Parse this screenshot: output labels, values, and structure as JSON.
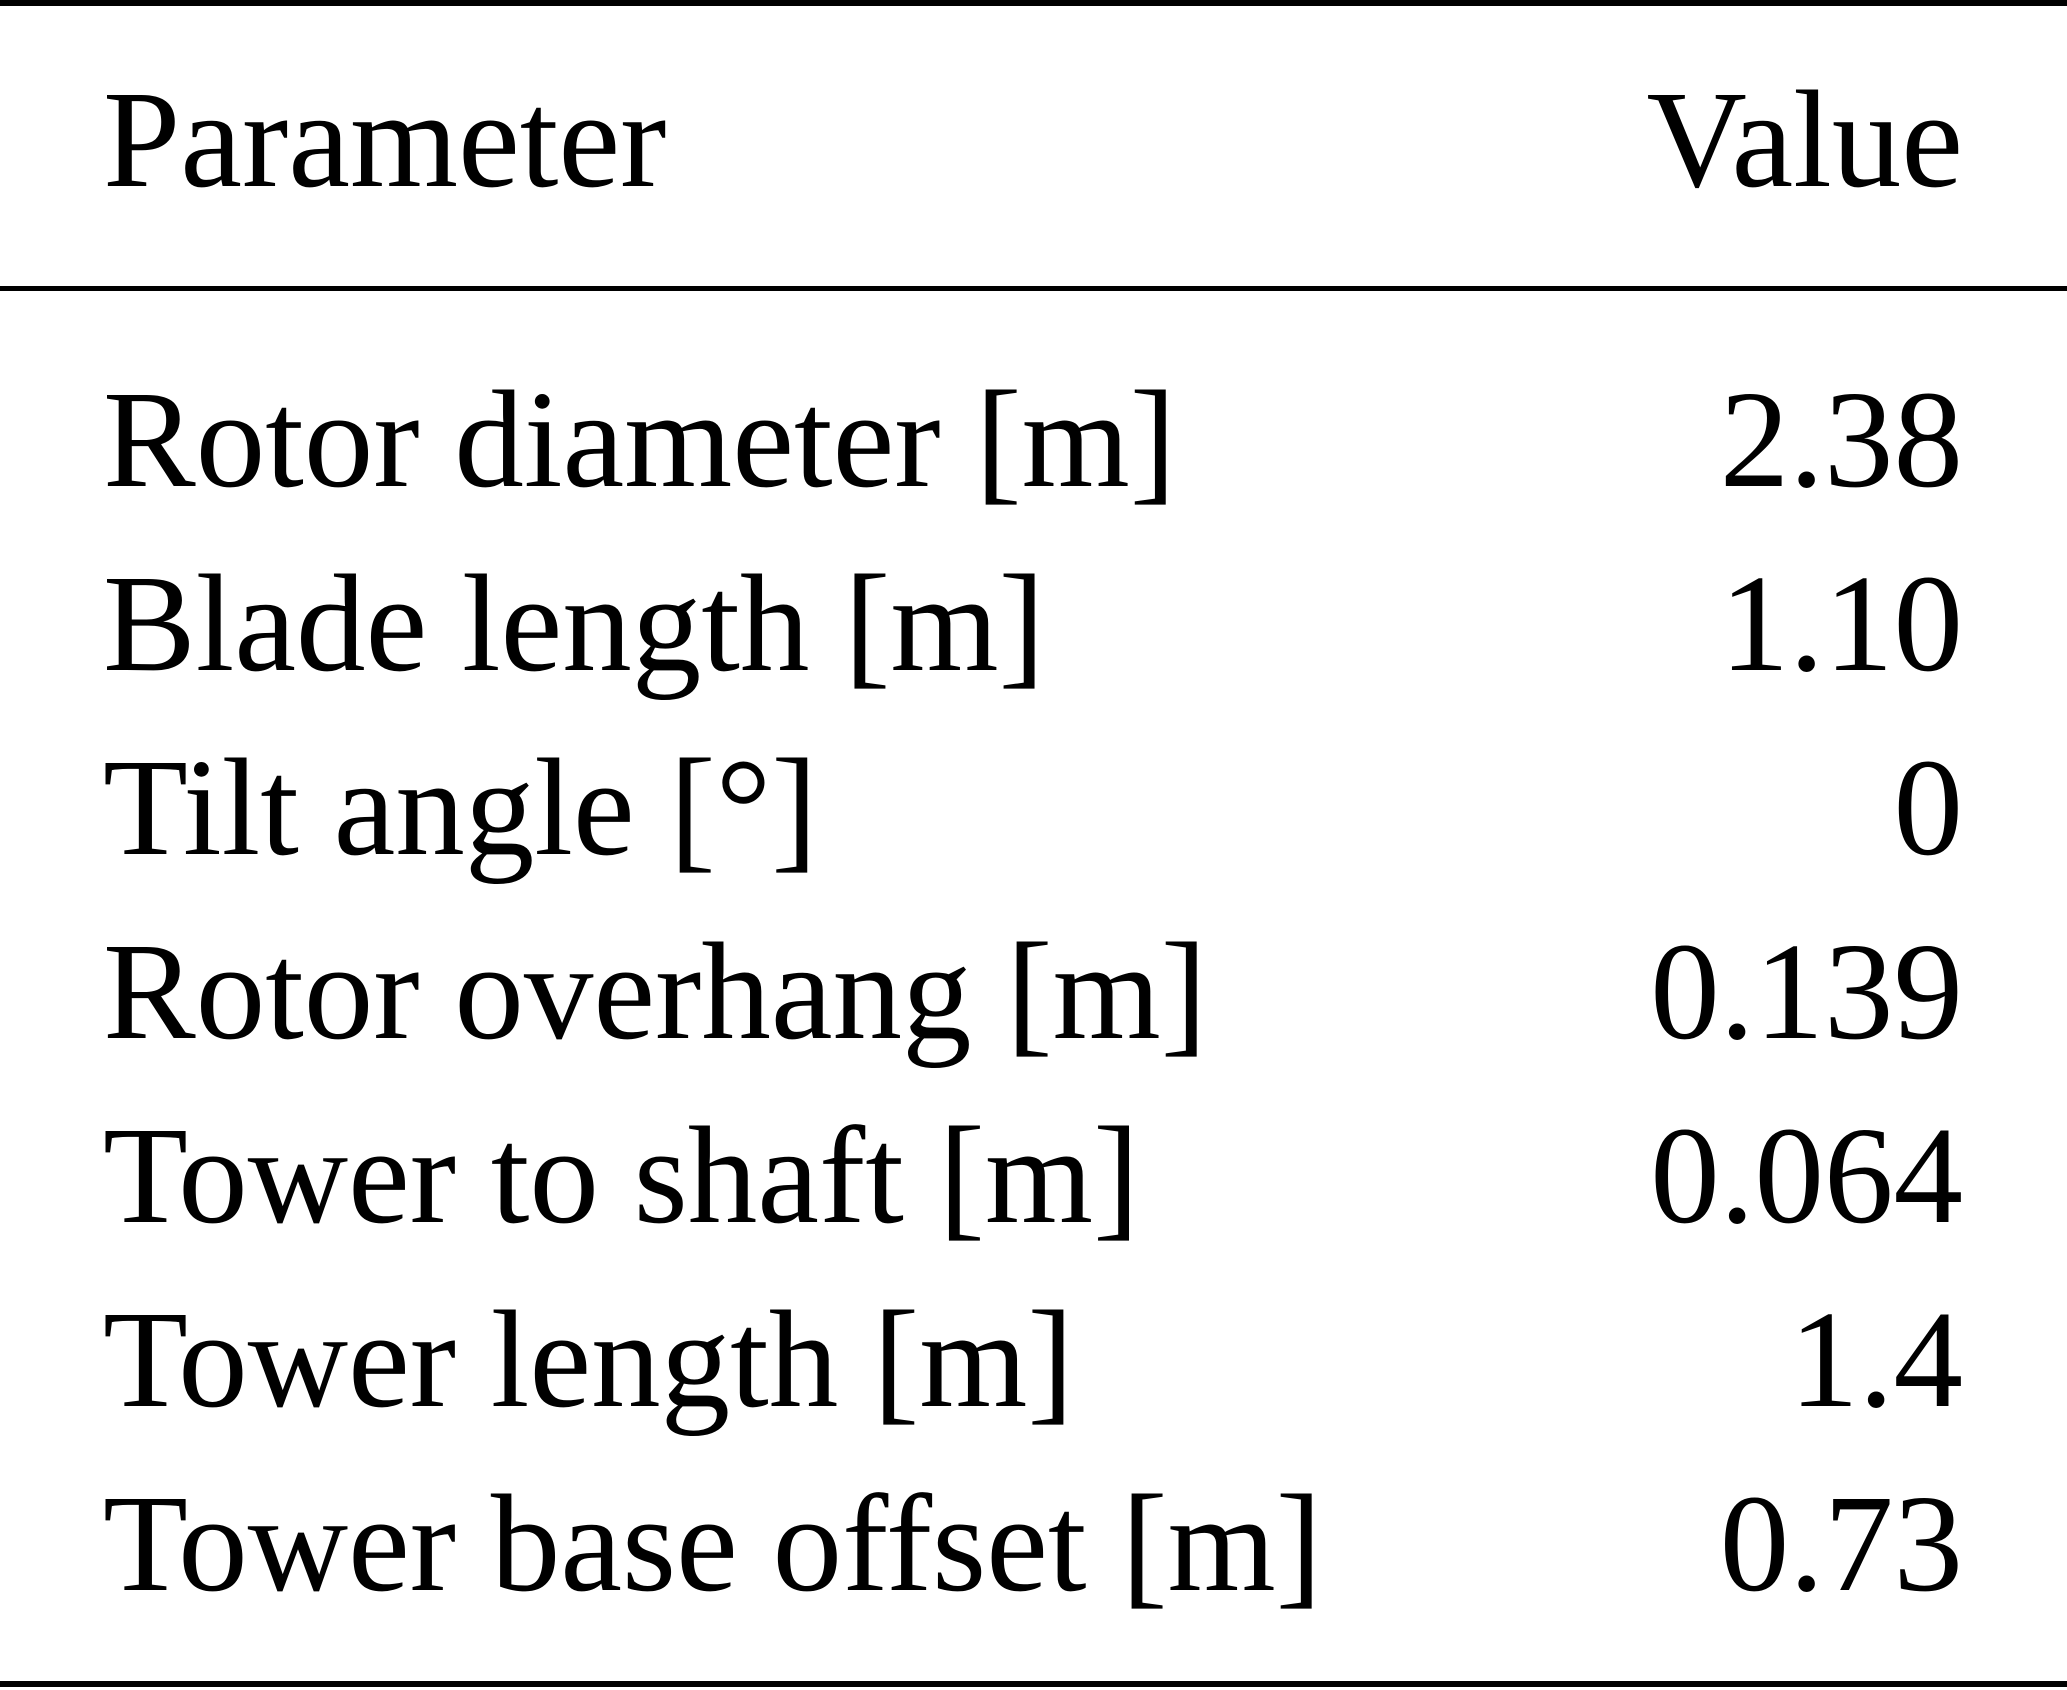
{
  "table": {
    "headers": {
      "parameter": "Parameter",
      "value": "Value"
    },
    "rows": [
      {
        "parameter": "Rotor diameter [m]",
        "value": "2.38"
      },
      {
        "parameter": "Blade length [m]",
        "value": "1.10"
      },
      {
        "parameter": "Tilt angle [°]",
        "value": "0"
      },
      {
        "parameter": "Rotor overhang [m]",
        "value": "0.139"
      },
      {
        "parameter": "Tower to shaft [m]",
        "value": "0.064"
      },
      {
        "parameter": "Tower length [m]",
        "value": "1.4"
      },
      {
        "parameter": "Tower base offset [m]",
        "value": "0.73"
      }
    ]
  }
}
